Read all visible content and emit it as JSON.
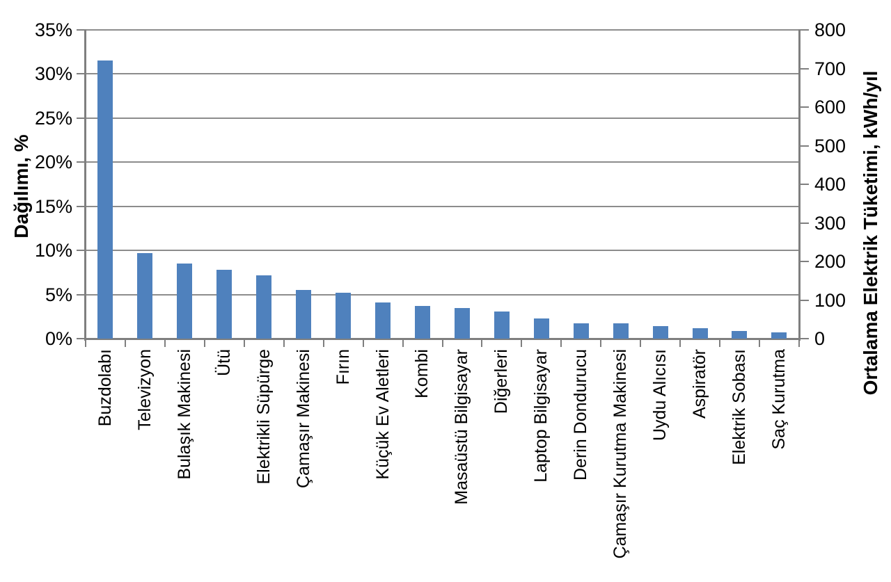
{
  "chart_data": {
    "type": "bar",
    "title": "",
    "ylabel_left": "Dağılımı, %",
    "ylabel_right": "Ortalama Elektrik Tüketimi, kWh/yıl",
    "categories": [
      "Buzdolabı",
      "Televizyon",
      "Bulaşık Makinesi",
      "Ütü",
      "Elektrikli Süpürge",
      "Çamaşır Makinesi",
      "Fırın",
      "Küçük Ev Aletleri",
      "Kombi",
      "Masaüstü Bilgisayar",
      "Diğerleri",
      "Laptop Bilgisayar",
      "Derin Dondurucu",
      "Çamaşır Kurutma Makinesi",
      "Uydu Alıcısı",
      "Aspiratör",
      "Elektrik Sobası",
      "Saç Kurutma"
    ],
    "series": [
      {
        "name": "Dağılımı, %",
        "axis": "left",
        "unit": "%",
        "values": [
          31.5,
          9.7,
          8.5,
          7.8,
          7.2,
          5.5,
          5.2,
          4.1,
          3.7,
          3.5,
          3.1,
          2.3,
          1.7,
          1.7,
          1.4,
          1.2,
          0.9,
          0.7
        ]
      }
    ],
    "values_kwh_estimated": [
      720,
      222,
      194,
      178,
      165,
      126,
      119,
      94,
      85,
      80,
      71,
      53,
      39,
      39,
      32,
      27,
      21,
      16
    ],
    "y_left": {
      "min": 0,
      "max": 35,
      "step": 5,
      "tick_labels": [
        "0%",
        "5%",
        "10%",
        "15%",
        "20%",
        "25%",
        "30%",
        "35%"
      ]
    },
    "y_right": {
      "min": 0,
      "max": 800,
      "step": 100,
      "tick_labels": [
        "0",
        "100",
        "200",
        "300",
        "400",
        "500",
        "600",
        "700",
        "800"
      ]
    },
    "grid": "horizontal",
    "legend": "none",
    "colors": {
      "bar": "#4f81bd",
      "gridline": "#8c8c8c",
      "axis": "#7f7f7f",
      "text": "#000000",
      "background": "#ffffff"
    }
  }
}
